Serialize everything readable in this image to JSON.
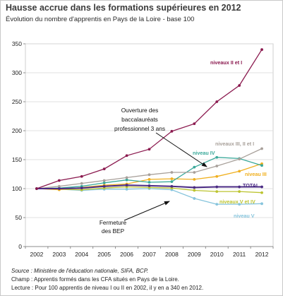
{
  "header": {
    "title": "Hausse accrue dans les formations supérieures en 2012",
    "subtitle": "Évolution du nombre d'apprentis en Pays de la Loire - base 100"
  },
  "footer": {
    "source": "Source : Ministère de l'éducation nationale, SIFA, BCP.",
    "champ": "Champ : Apprentis formés dans les CFA situés en Pays de la Loire.",
    "lecture": "Lecture : Pour 100 apprentis de niveau I ou II en 2002, il y en a 340 en 2012."
  },
  "chart_data": {
    "type": "line",
    "title": "Hausse accrue dans les formations supérieures en 2012",
    "subtitle": "Évolution du nombre d'apprentis en Pays de la Loire - base 100",
    "xlabel": "",
    "ylabel": "",
    "x": [
      2002,
      2003,
      2004,
      2005,
      2006,
      2007,
      2008,
      2009,
      2010,
      2011,
      2012
    ],
    "ylim": [
      0,
      350
    ],
    "yticks": [
      0,
      50,
      100,
      150,
      200,
      250,
      300,
      350
    ],
    "grid": "horizontal",
    "series": [
      {
        "name": "niveaux II et I",
        "color": "#8b1a4f",
        "values": [
          100,
          114,
          121,
          134,
          157,
          168,
          199,
          212,
          250,
          278,
          340
        ]
      },
      {
        "name": "niveaux III, II et I",
        "color": "#a8a09a",
        "values": [
          100,
          104,
          109,
          114,
          119,
          124,
          128,
          128,
          139,
          151,
          169
        ]
      },
      {
        "name": "niveau IV",
        "color": "#3aa99a",
        "values": [
          100,
          101,
          104,
          110,
          115,
          111,
          112,
          137,
          154,
          152,
          140
        ]
      },
      {
        "name": "niveau III",
        "color": "#f0b020",
        "values": [
          100,
          98,
          102,
          106,
          108,
          116,
          117,
          116,
          121,
          130,
          143
        ]
      },
      {
        "name": "TOTAL",
        "color": "#4a2a84",
        "values": [
          100,
          100,
          101,
          104,
          106,
          105,
          104,
          102,
          103,
          103,
          103
        ]
      },
      {
        "name": "niveaux V et IV",
        "color": "#bcc430",
        "values": [
          100,
          99,
          98,
          101,
          103,
          102,
          101,
          97,
          95,
          95,
          93
        ]
      },
      {
        "name": "niveau V",
        "color": "#86c4dc",
        "values": [
          100,
          99,
          97,
          99,
          99,
          100,
          98,
          83,
          73,
          73,
          74
        ]
      }
    ],
    "annotations": [
      {
        "id": "bac-pro",
        "text": [
          "Ouverture des",
          "baccalauréats",
          "professionnel 3 ans"
        ]
      },
      {
        "id": "bep",
        "text": [
          "Fermeture",
          "des BEP"
        ]
      }
    ]
  }
}
